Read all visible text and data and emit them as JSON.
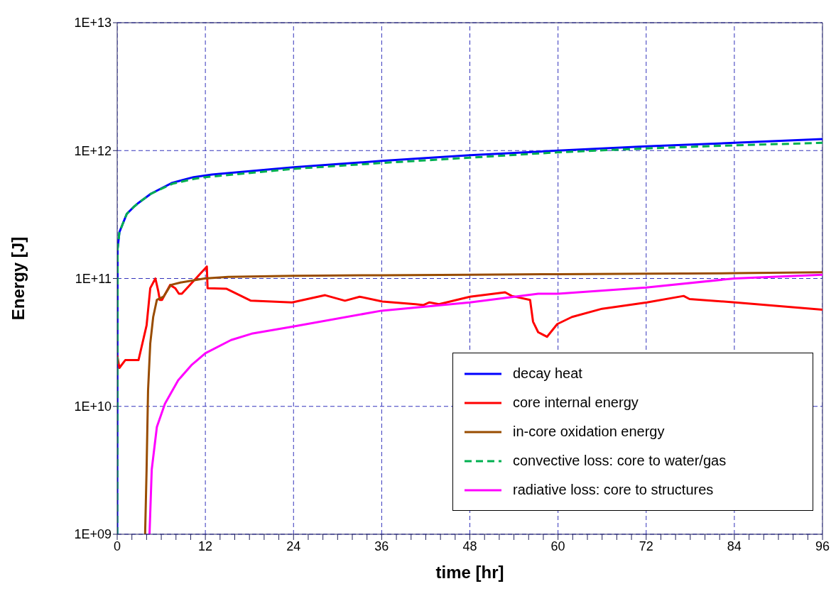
{
  "chart_data": {
    "type": "line",
    "xlabel": "time [hr]",
    "ylabel": "Energy [J]",
    "log": "y",
    "xlim": [
      0,
      96
    ],
    "xticks": [
      0,
      {
        "value": 2,
        "label": null
      },
      {
        "value": 4,
        "label": null
      },
      {
        "value": 6,
        "label": null
      },
      {
        "value": 8,
        "label": null
      },
      {
        "value": 10,
        "label": null
      },
      12,
      {
        "value": 14,
        "label": null
      },
      {
        "value": 16,
        "label": null
      },
      {
        "value": 18,
        "label": null
      },
      {
        "value": 20,
        "label": null
      },
      {
        "value": 22,
        "label": null
      },
      24,
      {
        "value": 26,
        "label": null
      },
      {
        "value": 28,
        "label": null
      },
      {
        "value": 30,
        "label": null
      },
      {
        "value": 32,
        "label": null
      },
      {
        "value": 34,
        "label": null
      },
      36,
      {
        "value": 38,
        "label": null
      },
      {
        "value": 40,
        "label": null
      },
      {
        "value": 42,
        "label": null
      },
      {
        "value": 44,
        "label": null
      },
      {
        "value": 46,
        "label": null
      },
      48,
      {
        "value": 50,
        "label": null
      },
      {
        "value": 52,
        "label": null
      },
      {
        "value": 54,
        "label": null
      },
      {
        "value": 56,
        "label": null
      },
      {
        "value": 58,
        "label": null
      },
      60,
      {
        "value": 62,
        "label": null
      },
      {
        "value": 64,
        "label": null
      },
      {
        "value": 66,
        "label": null
      },
      {
        "value": 68,
        "label": null
      },
      {
        "value": 70,
        "label": null
      },
      72,
      {
        "value": 74,
        "label": null
      },
      {
        "value": 76,
        "label": null
      },
      {
        "value": 78,
        "label": null
      },
      {
        "value": 80,
        "label": null
      },
      {
        "value": 82,
        "label": null
      },
      84,
      {
        "value": 86,
        "label": null
      },
      {
        "value": 88,
        "label": null
      },
      {
        "value": 90,
        "label": null
      },
      {
        "value": 92,
        "label": null
      },
      {
        "value": 94,
        "label": null
      },
      96
    ],
    "ylim": [
      1000000000.0,
      10000000000000.0
    ],
    "yticks": [
      {
        "value": 1000000000.0,
        "label": "1E+09"
      },
      {
        "value": 10000000000.0,
        "label": "1E+10"
      },
      {
        "value": 100000000000.0,
        "label": "1E+11"
      },
      {
        "value": 1000000000000.0,
        "label": "1E+12"
      },
      {
        "value": 10000000000000.0,
        "label": "1E+13"
      }
    ],
    "grid": true,
    "legend": "bottom right",
    "marker": "none",
    "series": [
      {
        "name": "decay heat",
        "color": "#0000ff",
        "line_style": "solid",
        "x": [
          0,
          0.05,
          0.3,
          1.3,
          2.2,
          2.9,
          4.6,
          7.5,
          10.4,
          12.9,
          24,
          36,
          48,
          60,
          72,
          84,
          96
        ],
        "values": [
          1000000000.0,
          170000000000.0,
          230000000000.0,
          320000000000.0,
          360000000000.0,
          390000000000.0,
          460000000000.0,
          560000000000.0,
          620000000000.0,
          650000000000.0,
          740000000000.0,
          830000000000.0,
          920000000000.0,
          1000000000000.0,
          1080000000000.0,
          1150000000000.0,
          1230000000000.0
        ]
      },
      {
        "name": "core internal energy",
        "color": "#ff0000",
        "line_style": "solid",
        "x": [
          0,
          0.3,
          1.1,
          2.9,
          4.0,
          4.5,
          5.2,
          5.6,
          5.8,
          6.1,
          7.2,
          7.9,
          8.4,
          8.8,
          12.2,
          12.3,
          14.9,
          18.2,
          23.8,
          28.3,
          31,
          33,
          36.1,
          40.6,
          41.7,
          42.5,
          43.8,
          48,
          52.8,
          53.7,
          56.2,
          56.6,
          57.3,
          58.5,
          59.9,
          61.9,
          66,
          72.1,
          77.1,
          77.9,
          84.1,
          96
        ],
        "values": [
          25000000000.0,
          20000000000.0,
          23000000000.0,
          23000000000.0,
          43000000000.0,
          84000000000.0,
          100000000000.0,
          79000000000.0,
          68000000000.0,
          68000000000.0,
          89000000000.0,
          84000000000.0,
          76000000000.0,
          76000000000.0,
          124000000000.0,
          84000000000.0,
          83000000000.0,
          67000000000.0,
          65000000000.0,
          74000000000.0,
          67000000000.0,
          72000000000.0,
          66000000000.0,
          63000000000.0,
          62000000000.0,
          65000000000.0,
          63000000000.0,
          72000000000.0,
          78000000000.0,
          73000000000.0,
          68000000000.0,
          46000000000.0,
          38000000000.0,
          35000000000.0,
          44000000000.0,
          50000000000.0,
          58000000000.0,
          65000000000.0,
          73000000000.0,
          69000000000.0,
          65000000000.0,
          57000000000.0
        ]
      },
      {
        "name": "in-core oxidation energy",
        "color": "#994c00",
        "line_style": "solid",
        "x": [
          3.8,
          4.0,
          4.2,
          4.5,
          4.9,
          5.4,
          6.3,
          7.3,
          8.6,
          11.9,
          15.1,
          24,
          36,
          48,
          60,
          72,
          84,
          96
        ],
        "values": [
          1000000000.0,
          3200000000.0,
          13300000000.0,
          31000000000.0,
          50000000000.0,
          68000000000.0,
          72000000000.0,
          89000000000.0,
          93000000000.0,
          100000000000.0,
          103000000000.0,
          105000000000.0,
          106000000000.0,
          107000000000.0,
          108000000000.0,
          109000000000.0,
          110000000000.0,
          112000000000.0
        ]
      },
      {
        "name": "convective loss: core to water/gas",
        "color": "#00b050",
        "line_style": "dashed",
        "x": [
          0,
          0.05,
          0.3,
          1.3,
          2.2,
          2.9,
          4.6,
          7.5,
          10.4,
          12,
          24,
          36,
          48,
          60,
          72,
          84,
          96
        ],
        "values": [
          1000000000.0,
          170000000000.0,
          230000000000.0,
          320000000000.0,
          360000000000.0,
          390000000000.0,
          460000000000.0,
          550000000000.0,
          600000000000.0,
          620000000000.0,
          720000000000.0,
          800000000000.0,
          880000000000.0,
          970000000000.0,
          1040000000000.0,
          1100000000000.0,
          1150000000000.0
        ]
      },
      {
        "name": "radiative loss: core to structures",
        "color": "#ff00ff",
        "line_style": "solid",
        "x": [
          4.4,
          4.7,
          5.4,
          6.5,
          8.3,
          10.1,
          12,
          15.5,
          18.3,
          23.8,
          36,
          48,
          57.3,
          60,
          72,
          84,
          96
        ],
        "values": [
          1000000000.0,
          3200000000.0,
          6900000000.0,
          10500000000.0,
          16000000000.0,
          21000000000.0,
          26000000000.0,
          33000000000.0,
          37000000000.0,
          42000000000.0,
          56000000000.0,
          65000000000.0,
          76000000000.0,
          76000000000.0,
          85000000000.0,
          100000000000.0,
          107000000000.0
        ]
      }
    ]
  }
}
